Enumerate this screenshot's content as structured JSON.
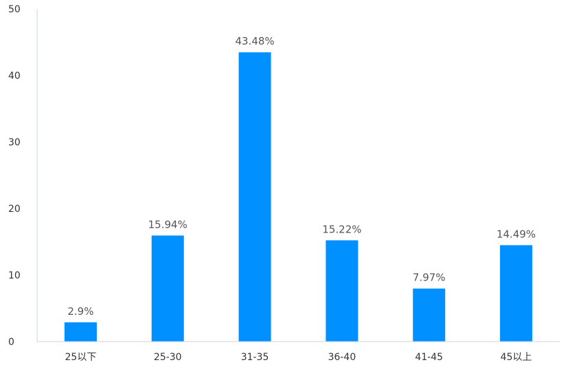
{
  "chart_data": {
    "type": "bar",
    "categories": [
      "25以下",
      "25-30",
      "31-35",
      "36-40",
      "41-45",
      "45以上"
    ],
    "values": [
      2.9,
      15.94,
      43.48,
      15.22,
      7.97,
      14.49
    ],
    "data_labels": [
      "2.9%",
      "15.94%",
      "43.48%",
      "15.22%",
      "7.97%",
      "14.49%"
    ],
    "ylim": [
      0,
      50
    ],
    "y_ticks": [
      0,
      10,
      20,
      30,
      40,
      50
    ],
    "y_tick_labels": [
      "0",
      "10",
      "20",
      "30",
      "40",
      "50"
    ],
    "bar_color": "#0090ff",
    "axis_color": "#c8d4e0",
    "grid": false,
    "legend": "none"
  }
}
